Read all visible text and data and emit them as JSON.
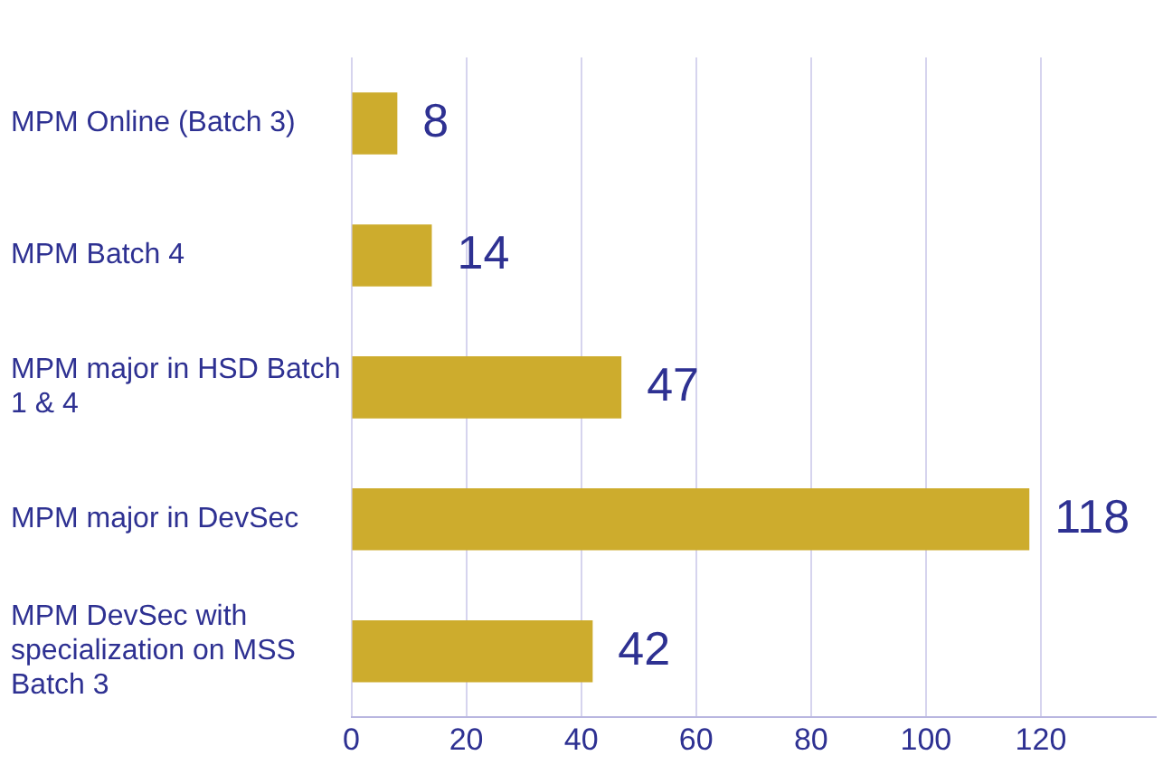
{
  "chart_data": {
    "type": "bar",
    "orientation": "horizontal",
    "categories": [
      "MPM Online (Batch 3)",
      "MPM Batch 4",
      "MPM major in HSD Batch 1 & 4",
      "MPM major in DevSec",
      "MPM DevSec with specialization on MSS Batch 3"
    ],
    "values": [
      8,
      14,
      47,
      118,
      42
    ],
    "color": "#cdac2d",
    "xlim": [
      0,
      140
    ],
    "xticks": [
      0,
      20,
      40,
      60,
      80,
      100,
      120
    ],
    "grid": "x",
    "data_labels": true,
    "legend": false
  }
}
